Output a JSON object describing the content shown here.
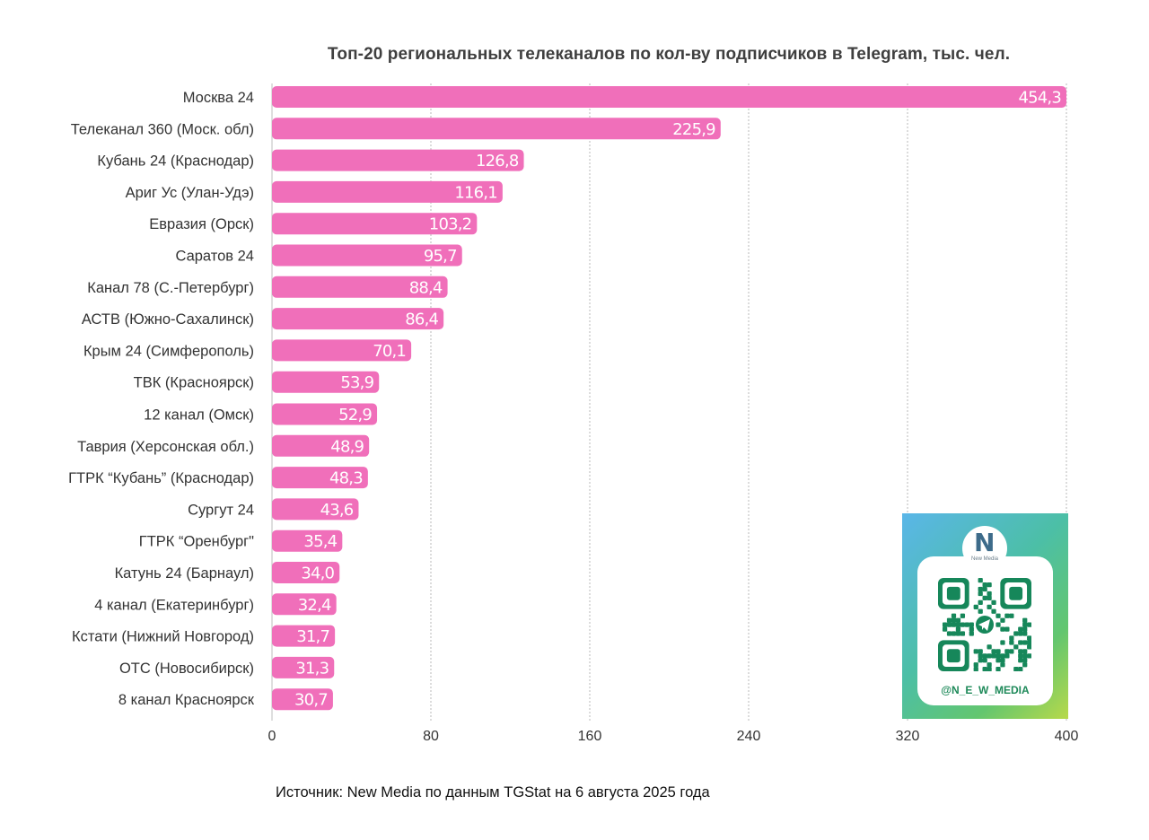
{
  "chart_data": {
    "type": "bar",
    "orientation": "horizontal",
    "title": "Топ-20 региональных телеканалов по кол-ву подписчиков в Telegram, тыс. чел.",
    "categories": [
      "Москва 24",
      "Телеканал 360 (Моск. обл)",
      "Кубань 24 (Краснодар)",
      "Ариг Ус (Улан-Удэ)",
      "Евразия (Орск)",
      "Саратов 24",
      "Канал 78 (С.-Петербург)",
      "АСТВ (Южно-Сахалинск)",
      "Крым 24 (Симферополь)",
      "ТВК (Красноярск)",
      "12 канал (Омск)",
      "Таврия (Херсонская обл.)",
      "ГТРК “Кубань” (Краснодар)",
      "Сургут 24",
      "ГТРК “Оренбург\"",
      "Катунь 24 (Барнаул)",
      "4 канал (Екатеринбург)",
      "Кстати (Нижний Новгород)",
      "ОТС (Новосибирск)",
      "8 канал Красноярск"
    ],
    "values": [
      454.3,
      225.9,
      126.8,
      116.1,
      103.2,
      95.7,
      88.4,
      86.4,
      70.1,
      53.9,
      52.9,
      48.9,
      48.3,
      43.6,
      35.4,
      34.0,
      32.4,
      31.7,
      31.3,
      30.7
    ],
    "value_labels": [
      "454,3",
      "225,9",
      "126,8",
      "116,1",
      "103,2",
      "95,7",
      "88,4",
      "86,4",
      "70,1",
      "53,9",
      "52,9",
      "48,9",
      "48,3",
      "43,6",
      "35,4",
      "34,0",
      "32,4",
      "31,7",
      "31,3",
      "30,7"
    ],
    "xlim": [
      0,
      400
    ],
    "x_ticks": [
      0,
      80,
      160,
      240,
      320,
      400
    ],
    "x_tick_labels": [
      "0",
      "80",
      "160",
      "240",
      "320",
      "400"
    ],
    "grid": "vertical-dotted",
    "bar_color": "#f06fba",
    "note": "first bar exceeds axis max and is clipped at 400"
  },
  "source": "Источник: New Media по данным TGStat на 6 августа 2025 года",
  "promo": {
    "logo_mark": "N",
    "logo_text": "New Media",
    "handle": "@N_E_W_MEDIA",
    "qr_color": "#16875a"
  }
}
